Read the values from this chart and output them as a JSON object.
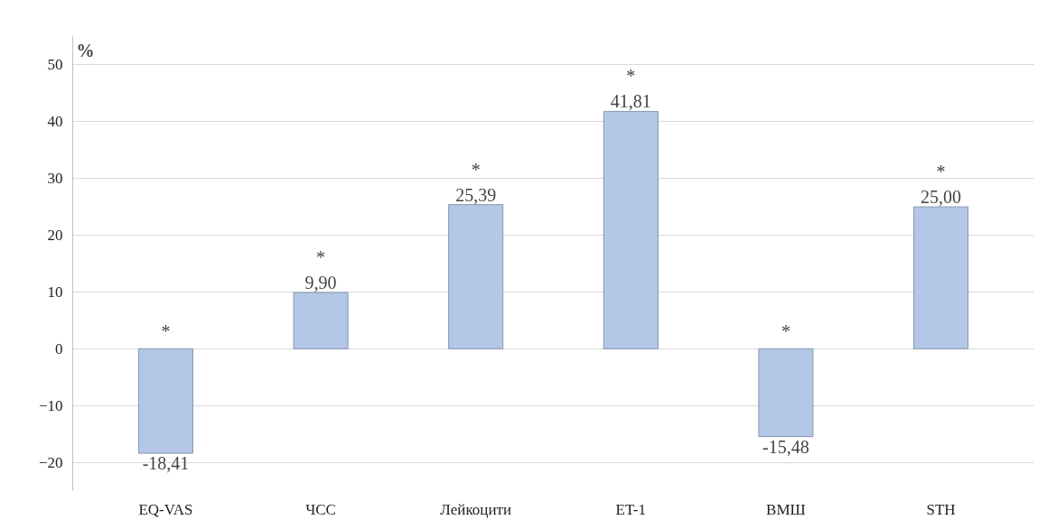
{
  "chart_data": {
    "type": "bar",
    "ylabel": "%",
    "categories": [
      "EQ-VAS",
      "ЧСС",
      "Лейкоцити",
      "ET-1",
      "ВМШ",
      "STH"
    ],
    "values": [
      -18.41,
      9.9,
      25.39,
      41.81,
      -15.48,
      25.0
    ],
    "value_labels": [
      "-18,41",
      "9,90",
      "25,39",
      "41,81",
      "-15,48",
      "25,00"
    ],
    "color": "#b4c7e7",
    "ylim": [
      -25,
      55
    ],
    "yticks": [
      -20,
      -10,
      0,
      10,
      20,
      30,
      40,
      50
    ],
    "grid": "y",
    "annotations": [
      {
        "text": "*",
        "x": "EQ-VAS",
        "y": 0
      },
      {
        "text": "*",
        "x": "ЧСС",
        "y": 9.9
      },
      {
        "text": "*",
        "x": "Лейкоцити",
        "y": 25.39
      },
      {
        "text": "*",
        "x": "ET-1",
        "y": 41.81
      },
      {
        "text": "*",
        "x": "ВМШ",
        "y": 0
      },
      {
        "text": "*",
        "x": "STH",
        "y": 25.0
      }
    ]
  }
}
